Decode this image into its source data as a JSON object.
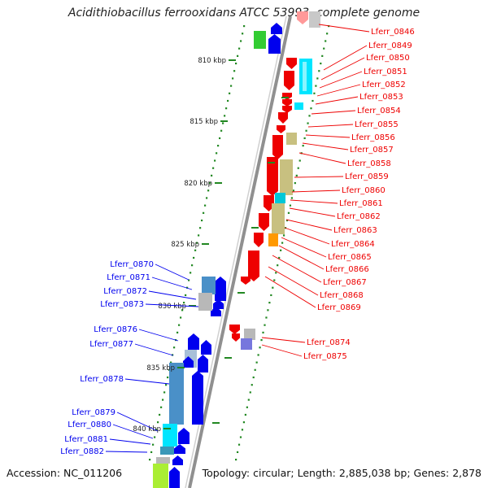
{
  "title": "Acidithiobacillus ferrooxidans ATCC 53993, complete genome",
  "footer": {
    "accession": "Accession: NC_011206",
    "topology": "Topology: circular; Length: 2,885,038 bp; Genes: 2,878"
  },
  "colors": {
    "forward_gene": "#0000ee",
    "reverse_gene": "#ee0000",
    "backbone": "#909090",
    "tick": "#228822",
    "feature_cyan": "#00e5ff",
    "feature_olive": "#c8c080",
    "feature_steel": "#4a90c8",
    "feature_gray": "#b8b8b8",
    "feature_green": "#33cc33",
    "feature_lime": "#aaee33",
    "feature_orange": "#ff9900",
    "feature_violet": "#7777dd"
  },
  "scale_labels": [
    "810 kbp",
    "815 kbp",
    "820 kbp",
    "825 kbp",
    "830 kbp",
    "835 kbp",
    "840 kbp"
  ],
  "gene_labels_right": [
    "Lferr_0846",
    "Lferr_0849",
    "Lferr_0850",
    "Lferr_0851",
    "Lferr_0852",
    "Lferr_0853",
    "Lferr_0854",
    "Lferr_0855",
    "Lferr_0856",
    "Lferr_0857",
    "Lferr_0858",
    "Lferr_0859",
    "Lferr_0860",
    "Lferr_0861",
    "Lferr_0862",
    "Lferr_0863",
    "Lferr_0864",
    "Lferr_0865",
    "Lferr_0866",
    "Lferr_0867",
    "Lferr_0868",
    "Lferr_0869",
    "Lferr_0874",
    "Lferr_0875"
  ],
  "gene_labels_left": [
    "Lferr_0870",
    "Lferr_0871",
    "Lferr_0872",
    "Lferr_0873",
    "Lferr_0876",
    "Lferr_0877",
    "Lferr_0878",
    "Lferr_0879",
    "Lferr_0880",
    "Lferr_0881",
    "Lferr_0882"
  ]
}
